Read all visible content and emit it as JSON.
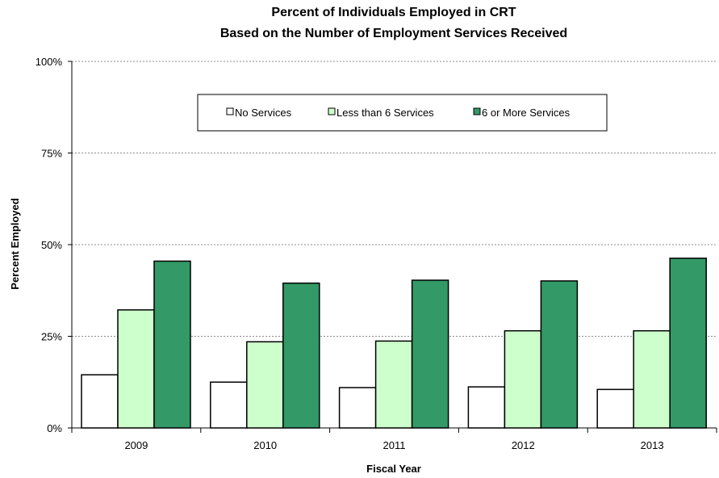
{
  "chart_data": {
    "type": "bar",
    "title": [
      "Percent of Individuals Employed in CRT",
      "Based on the Number of Employment Services Received"
    ],
    "xlabel": "Fiscal Year",
    "ylabel": "Percent Employed",
    "categories": [
      "2009",
      "2010",
      "2011",
      "2012",
      "2013"
    ],
    "yticks": [
      "0%",
      "25%",
      "50%",
      "75%",
      "100%"
    ],
    "ylim": [
      0,
      100
    ],
    "grid": "horizontal dashed",
    "legend_position": "top-center",
    "series": [
      {
        "name": "No Services",
        "color": "#ffffff",
        "values": [
          14.5,
          12.5,
          11,
          11.2,
          10.5
        ]
      },
      {
        "name": "Less than 6 Services",
        "color": "#ccffcc",
        "values": [
          32.2,
          23.5,
          23.7,
          26.5,
          26.5
        ]
      },
      {
        "name": "6 or More Services",
        "color": "#339966",
        "values": [
          45.5,
          39.5,
          40.3,
          40.1,
          46.3
        ]
      }
    ]
  }
}
